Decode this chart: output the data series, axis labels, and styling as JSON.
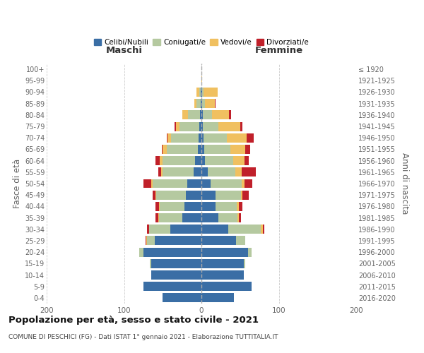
{
  "age_groups": [
    "0-4",
    "5-9",
    "10-14",
    "15-19",
    "20-24",
    "25-29",
    "30-34",
    "35-39",
    "40-44",
    "45-49",
    "50-54",
    "55-59",
    "60-64",
    "65-69",
    "70-74",
    "75-79",
    "80-84",
    "85-89",
    "90-94",
    "95-99",
    "100+"
  ],
  "birth_years": [
    "2016-2020",
    "2011-2015",
    "2006-2010",
    "2001-2005",
    "1996-2000",
    "1991-1995",
    "1986-1990",
    "1981-1985",
    "1976-1980",
    "1971-1975",
    "1966-1970",
    "1961-1965",
    "1956-1960",
    "1951-1955",
    "1946-1950",
    "1941-1945",
    "1936-1940",
    "1931-1935",
    "1926-1930",
    "1921-1925",
    "≤ 1920"
  ],
  "maschi": {
    "celibi": [
      50,
      75,
      65,
      65,
      75,
      60,
      40,
      25,
      22,
      20,
      18,
      10,
      8,
      5,
      4,
      3,
      2,
      1,
      1,
      0,
      0
    ],
    "coniugati": [
      0,
      0,
      0,
      2,
      5,
      10,
      28,
      30,
      32,
      38,
      45,
      40,
      42,
      40,
      35,
      25,
      15,
      5,
      2,
      0,
      0
    ],
    "vedovi": [
      0,
      0,
      0,
      0,
      0,
      1,
      0,
      1,
      1,
      1,
      2,
      2,
      4,
      5,
      5,
      5,
      8,
      3,
      3,
      0,
      0
    ],
    "divorziati": [
      0,
      0,
      0,
      0,
      0,
      1,
      2,
      3,
      4,
      4,
      10,
      4,
      5,
      1,
      1,
      2,
      0,
      0,
      0,
      0,
      0
    ]
  },
  "femmine": {
    "nubili": [
      42,
      65,
      55,
      55,
      60,
      45,
      35,
      22,
      18,
      18,
      12,
      8,
      5,
      4,
      3,
      2,
      2,
      1,
      1,
      0,
      0
    ],
    "coniugate": [
      0,
      0,
      0,
      2,
      5,
      12,
      42,
      25,
      28,
      33,
      40,
      36,
      36,
      33,
      30,
      20,
      12,
      4,
      2,
      0,
      0
    ],
    "vedove": [
      0,
      0,
      0,
      0,
      0,
      0,
      2,
      1,
      2,
      2,
      4,
      8,
      15,
      20,
      25,
      28,
      22,
      12,
      18,
      1,
      0
    ],
    "divorziate": [
      0,
      0,
      0,
      0,
      0,
      0,
      2,
      3,
      5,
      8,
      10,
      18,
      5,
      6,
      10,
      3,
      2,
      1,
      0,
      0,
      0
    ]
  },
  "colors": {
    "celibi": "#3a6ea5",
    "coniugati": "#b5c9a0",
    "vedovi": "#f0c060",
    "divorziati": "#c0202a"
  },
  "xlim": 200,
  "title": "Popolazione per età, sesso e stato civile - 2021",
  "subtitle": "COMUNE DI PESCHICI (FG) - Dati ISTAT 1° gennaio 2021 - Elaborazione TUTTITALIA.IT",
  "ylabel": "Fasce di età",
  "ylabel_right": "Anni di nascita",
  "maschi_label": "Maschi",
  "femmine_label": "Femmine",
  "legend_labels": [
    "Celibi/Nubili",
    "Coniugati/e",
    "Vedovi/e",
    "Divorziati/e"
  ]
}
